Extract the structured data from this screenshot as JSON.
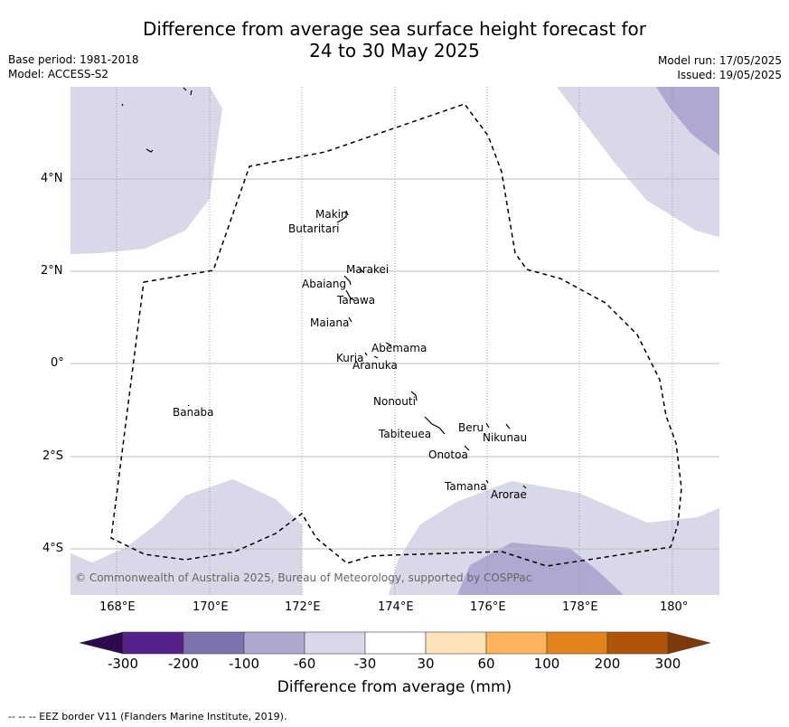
{
  "title_line1": "Difference from average sea surface height forecast for",
  "title_line2": "24 to 30 May 2025",
  "meta": {
    "base_period": "Base period: 1981-2018",
    "model": "Model: ACCESS-S2",
    "model_run": "Model run: 17/05/2025",
    "issued": "Issued: 19/05/2025"
  },
  "map": {
    "lon_ticks": [
      "168°E",
      "170°E",
      "172°E",
      "174°E",
      "176°E",
      "178°E",
      "180°"
    ],
    "lat_ticks": [
      "4°N",
      "2°N",
      "0°",
      "2°S",
      "4°S"
    ],
    "places": [
      {
        "name": "Makin"
      },
      {
        "name": "Butaritari"
      },
      {
        "name": "Marakei"
      },
      {
        "name": "Abaiang"
      },
      {
        "name": "Tarawa"
      },
      {
        "name": "Maiana"
      },
      {
        "name": "Abemama"
      },
      {
        "name": "Kuria"
      },
      {
        "name": "Aranuka"
      },
      {
        "name": "Banaba"
      },
      {
        "name": "Nonouti"
      },
      {
        "name": "Beru"
      },
      {
        "name": "Nikunau"
      },
      {
        "name": "Tabiteuea"
      },
      {
        "name": "Onotoa"
      },
      {
        "name": "Tamana"
      },
      {
        "name": "Arorae"
      }
    ],
    "copyright": "© Commonwealth of Australia 2025, Bureau of Meteorology, supported by COSPPac",
    "fill_colors": {
      "-60_to_-30": "#d8d8e8",
      "-100_to_-60": "#b0a8d0"
    }
  },
  "colorbar": {
    "labels": [
      "-300",
      "-200",
      "-100",
      "-60",
      "-30",
      "30",
      "60",
      "100",
      "200",
      "300"
    ],
    "colors": [
      "#2d0a4e",
      "#54218a",
      "#7e72ad",
      "#ada7d1",
      "#d8d8ea",
      "#ffffff",
      "#fee2b9",
      "#fdb45c",
      "#e4831a",
      "#b1540a",
      "#7d3908"
    ],
    "title": "Difference from average (mm)"
  },
  "footer": "--  --  -- EEZ border V11 (Flanders Marine Institute, 2019)."
}
